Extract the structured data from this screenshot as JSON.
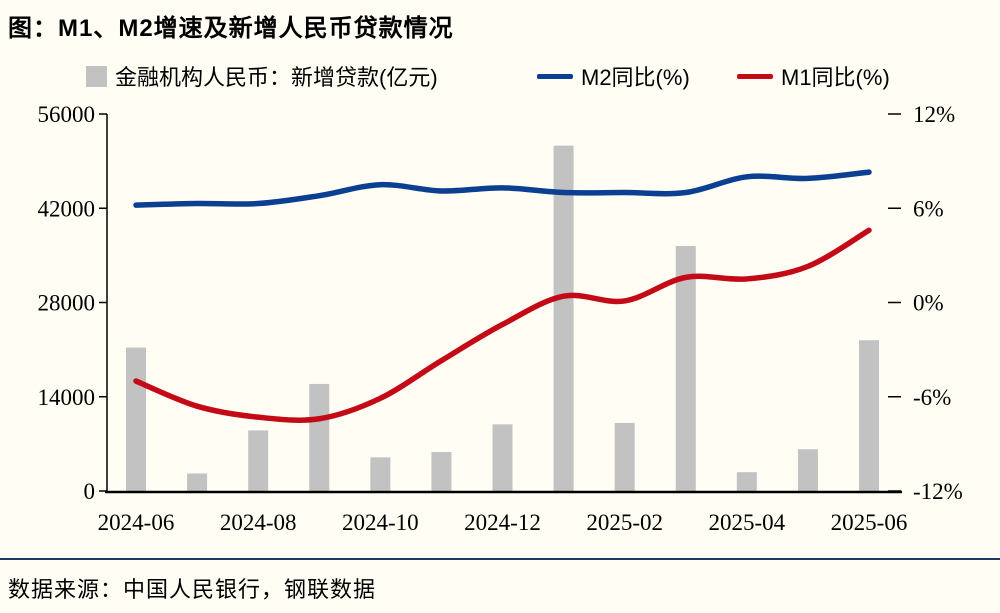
{
  "title": "图：M1、M2增速及新增人民币贷款情况",
  "source": "数据来源：中国人民银行，钢联数据",
  "colors": {
    "background": "#fffdf4",
    "bar": "#c2c2c2",
    "m2_line": "#0b3f92",
    "m1_line": "#c30b18",
    "divider": "#203864",
    "axis": "#000000",
    "text": "#000000"
  },
  "legend": {
    "items": [
      {
        "label": "金融机构人民币：新增贷款(亿元)",
        "type": "bar",
        "color": "#c2c2c2"
      },
      {
        "label": "M2同比(%)",
        "type": "line",
        "color": "#0b3f92"
      },
      {
        "label": "M1同比(%)",
        "type": "line",
        "color": "#c30b18"
      }
    ]
  },
  "chart_data": {
    "type": "bar+line",
    "title": "图：M1、M2增速及新增人民币贷款情况",
    "categories": [
      "2024-06",
      "2024-07",
      "2024-08",
      "2024-09",
      "2024-10",
      "2024-11",
      "2024-12",
      "2025-01",
      "2025-02",
      "2025-03",
      "2025-04",
      "2025-05",
      "2025-06"
    ],
    "x_tick_labels_visible": [
      "2024-06",
      "2024-08",
      "2024-10",
      "2024-12",
      "2025-02",
      "2025-04",
      "2025-06"
    ],
    "series": [
      {
        "name": "金融机构人民币：新增贷款(亿元)",
        "type": "bar",
        "axis": "left",
        "color": "#c2c2c2",
        "values": [
          21300,
          2600,
          9000,
          15900,
          5000,
          5800,
          9900,
          51300,
          10100,
          36400,
          2800,
          6200,
          22400
        ]
      },
      {
        "name": "M2同比(%)",
        "type": "line",
        "axis": "right",
        "color": "#0b3f92",
        "values": [
          6.2,
          6.3,
          6.3,
          6.8,
          7.5,
          7.1,
          7.3,
          7.0,
          7.0,
          7.0,
          8.0,
          7.9,
          8.3
        ]
      },
      {
        "name": "M1同比(%)",
        "type": "line",
        "axis": "right",
        "color": "#c30b18",
        "values": [
          -5.0,
          -6.6,
          -7.3,
          -7.4,
          -6.1,
          -3.7,
          -1.4,
          0.4,
          0.1,
          1.6,
          1.5,
          2.3,
          4.6
        ]
      }
    ],
    "left_axis": {
      "min": 0,
      "max": 56000,
      "ticks": [
        0,
        14000,
        28000,
        42000,
        56000
      ],
      "suffix": ""
    },
    "right_axis": {
      "min": -12,
      "max": 12,
      "ticks": [
        -12,
        -6,
        0,
        6,
        12
      ],
      "suffix": "%"
    },
    "grid": false,
    "legend_position": "top"
  }
}
